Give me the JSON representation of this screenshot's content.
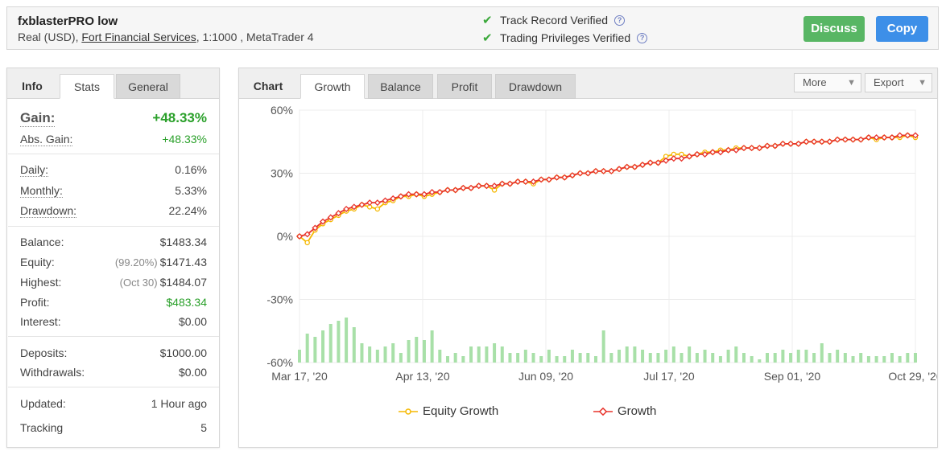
{
  "header": {
    "title": "fxblasterPRO low",
    "account_type": "Real (USD),",
    "broker": "Fort Financial Services",
    "leverage_platform": ", 1:1000 , MetaTrader 4",
    "verif1": "Track Record Verified",
    "verif2": "Trading Privileges Verified",
    "discuss": "Discuss",
    "copy": "Copy"
  },
  "left": {
    "tab_label": "Info",
    "tab_stats": "Stats",
    "tab_general": "General",
    "gain_k": "Gain:",
    "gain_v": "+48.33%",
    "absgain_k": "Abs. Gain:",
    "absgain_v": "+48.33%",
    "daily_k": "Daily:",
    "daily_v": "0.16%",
    "monthly_k": "Monthly:",
    "monthly_v": "5.33%",
    "drawdown_k": "Drawdown:",
    "drawdown_v": "22.24%",
    "balance_k": "Balance:",
    "balance_v": "$1483.34",
    "equity_k": "Equity:",
    "equity_p": "(99.20%)",
    "equity_v": "$1471.43",
    "highest_k": "Highest:",
    "highest_p": "(Oct 30)",
    "highest_v": "$1484.07",
    "profit_k": "Profit:",
    "profit_v": "$483.34",
    "interest_k": "Interest:",
    "interest_v": "$0.00",
    "deposits_k": "Deposits:",
    "deposits_v": "$1000.00",
    "withdrawals_k": "Withdrawals:",
    "withdrawals_v": "$0.00",
    "updated_k": "Updated:",
    "updated_v": "1 Hour ago",
    "tracking_k": "Tracking",
    "tracking_v": "5"
  },
  "right": {
    "tab_label": "Chart",
    "tab_growth": "Growth",
    "tab_balance": "Balance",
    "tab_profit": "Profit",
    "tab_drawdown": "Drawdown",
    "more": "More",
    "export": "Export",
    "legend_equity": "Equity Growth",
    "legend_growth": "Growth"
  },
  "colors": {
    "equity": "#f5b800",
    "growth": "#e8342c",
    "volume": "#a8e0a8",
    "green": "#2aa02a"
  },
  "chart_data": {
    "type": "line",
    "ylim": [
      -60,
      60
    ],
    "yticks": [
      "60%",
      "30%",
      "0%",
      "-30%",
      "-60%"
    ],
    "xticks": [
      "Mar 17, '20",
      "Apr 13, '20",
      "Jun 09, '20",
      "Jul 17, '20",
      "Sep 01, '20",
      "Oct 29, '20"
    ],
    "series": [
      {
        "name": "Equity Growth",
        "values": [
          0,
          -3,
          3,
          6,
          8,
          10,
          12,
          13,
          15,
          14,
          13,
          16,
          17,
          19,
          19,
          20,
          19,
          20,
          21,
          22,
          22,
          23,
          23,
          24,
          24,
          22,
          25,
          25,
          26,
          26,
          25,
          27,
          27,
          28,
          28,
          29,
          30,
          30,
          31,
          31,
          31,
          32,
          33,
          33,
          34,
          35,
          35,
          38,
          39,
          39,
          38,
          39,
          40,
          40,
          41,
          41,
          42,
          42,
          42,
          42,
          43,
          43,
          44,
          44,
          44,
          45,
          45,
          45,
          45,
          46,
          46,
          46,
          46,
          47,
          46,
          47,
          47,
          47,
          48,
          47
        ]
      },
      {
        "name": "Growth",
        "values": [
          0,
          1,
          4,
          7,
          9,
          11,
          13,
          14,
          15,
          16,
          16,
          17,
          18,
          19,
          20,
          20,
          20,
          21,
          21,
          22,
          22,
          23,
          23,
          24,
          24,
          24,
          25,
          25,
          26,
          26,
          26,
          27,
          27,
          28,
          28,
          29,
          30,
          30,
          31,
          31,
          31,
          32,
          33,
          33,
          34,
          35,
          35,
          36,
          37,
          37,
          38,
          39,
          39,
          40,
          40,
          41,
          41,
          42,
          42,
          42,
          43,
          43,
          44,
          44,
          44,
          45,
          45,
          45,
          45,
          46,
          46,
          46,
          46,
          47,
          47,
          47,
          47,
          48,
          48,
          48
        ]
      }
    ],
    "volume": [
      4,
      9,
      8,
      10,
      12,
      13,
      14,
      11,
      6,
      5,
      4,
      5,
      6,
      3,
      7,
      8,
      7,
      10,
      4,
      2,
      3,
      2,
      5,
      5,
      5,
      6,
      5,
      3,
      3,
      4,
      3,
      2,
      4,
      2,
      2,
      4,
      3,
      3,
      2,
      10,
      3,
      4,
      5,
      5,
      4,
      3,
      3,
      4,
      5,
      3,
      5,
      3,
      4,
      3,
      2,
      4,
      5,
      3,
      2,
      1,
      3,
      3,
      4,
      3,
      4,
      4,
      3,
      6,
      3,
      4,
      3,
      2,
      3,
      2,
      2,
      2,
      3,
      2,
      3,
      3
    ]
  }
}
